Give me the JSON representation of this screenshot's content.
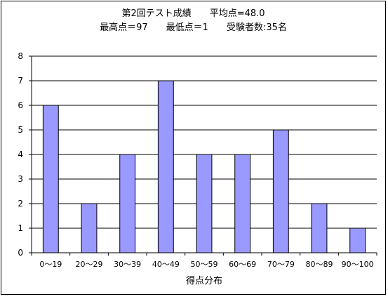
{
  "chart_data": {
    "type": "bar",
    "title": "第2回テスト成績　　平均点=48.0",
    "subtitle": "最高点＝97　　最低点＝1　　受験者数:35名",
    "xlabel": "得点分布",
    "ylabel": "",
    "categories": [
      "0～19",
      "20～29",
      "30～39",
      "40～49",
      "50～59",
      "60～69",
      "70～79",
      "80～89",
      "90～100"
    ],
    "values": [
      6,
      2,
      4,
      7,
      4,
      4,
      5,
      2,
      1
    ],
    "ylim": [
      0,
      8
    ],
    "yticks": [
      0,
      1,
      2,
      3,
      4,
      5,
      6,
      7,
      8
    ],
    "grid": true,
    "legend": "none",
    "colors": {
      "bar_fill": "#9999ff",
      "bar_stroke": "#000000",
      "grid": "#000000",
      "background": "#ffffff"
    }
  }
}
